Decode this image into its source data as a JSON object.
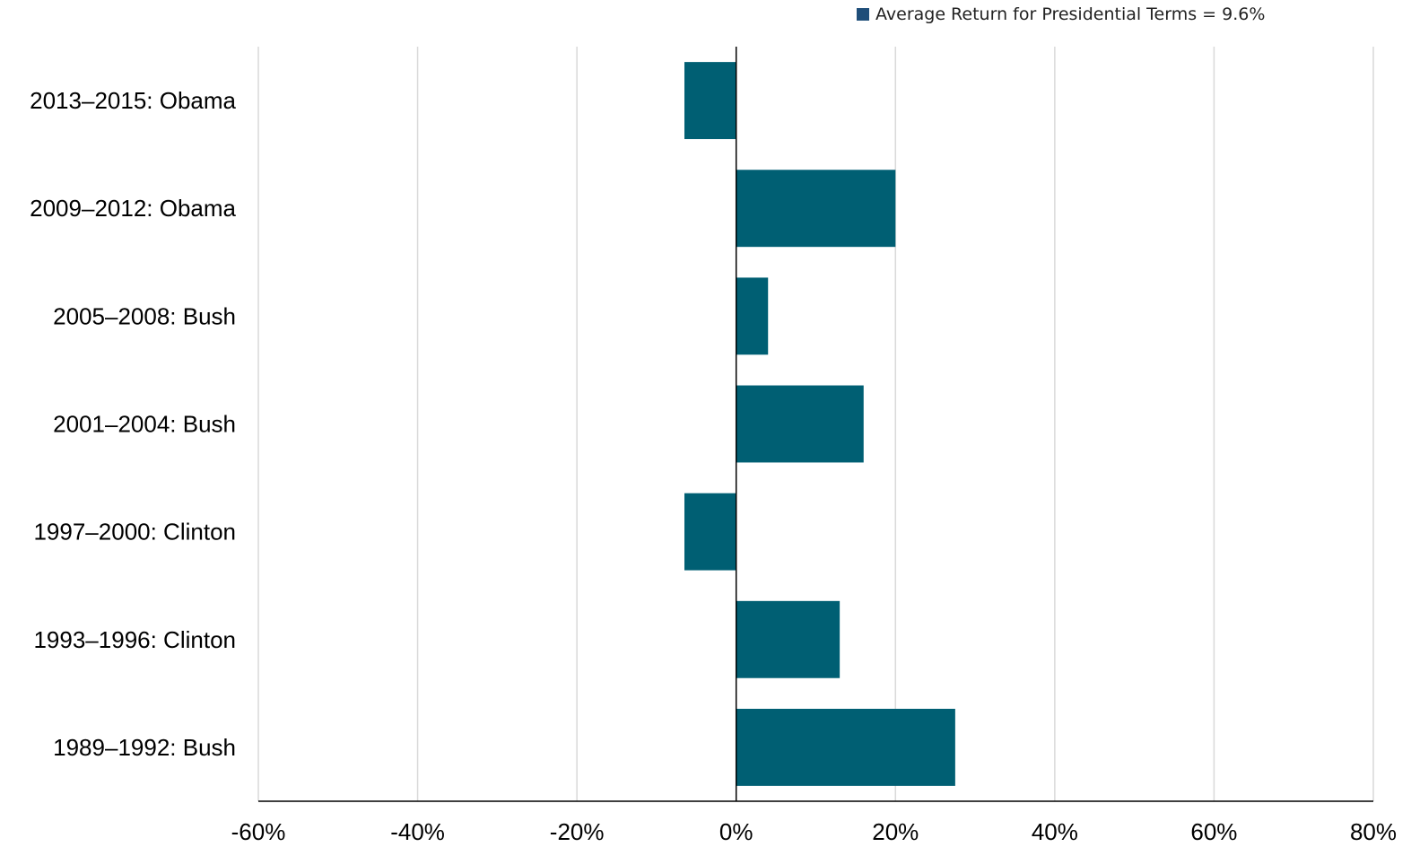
{
  "legend": {
    "label": "Average Return for Presidential Terms = 9.6%",
    "swatch_color": "#1f4e79"
  },
  "colors": {
    "bar": "#005f73",
    "grid": "#d9d9d9",
    "axis": "#000000",
    "text": "#000000"
  },
  "chart_data": {
    "type": "bar",
    "orientation": "horizontal",
    "categories": [
      "2013–2015: Obama",
      "2009–2012: Obama",
      "2005–2008: Bush",
      "2001–2004: Bush",
      "1997–2000: Clinton",
      "1993–1996: Clinton",
      "1989–1992: Bush"
    ],
    "values": [
      -6.5,
      20,
      4,
      16,
      -6.5,
      13,
      27.5
    ],
    "xlim": [
      -60,
      80
    ],
    "xticks": [
      -60,
      -40,
      -20,
      0,
      20,
      40,
      60,
      80
    ],
    "xtick_labels": [
      "-60%",
      "-40%",
      "-20%",
      "0%",
      "20%",
      "40%",
      "60%",
      "80%"
    ],
    "grid": true,
    "legend_position": "top-right"
  }
}
